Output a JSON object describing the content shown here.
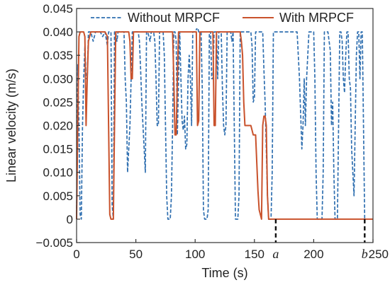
{
  "chart_data": {
    "type": "line",
    "title": "",
    "xlabel": "Time (s)",
    "ylabel": "Linear velocity (m/s)",
    "xlim": [
      0,
      250
    ],
    "ylim": [
      -0.005,
      0.045
    ],
    "xticks": [
      {
        "value": 0,
        "label": "0"
      },
      {
        "value": 50,
        "label": "50"
      },
      {
        "value": 100,
        "label": "100"
      },
      {
        "value": 150,
        "label": "150"
      },
      {
        "value": 200,
        "label": "200"
      },
      {
        "value": 250,
        "label": "250"
      }
    ],
    "yticks": [
      {
        "value": 0.045,
        "label": "0.045"
      },
      {
        "value": 0.04,
        "label": "0.040"
      },
      {
        "value": 0.035,
        "label": "0.035"
      },
      {
        "value": 0.03,
        "label": "0.030"
      },
      {
        "value": 0.025,
        "label": "0.025"
      },
      {
        "value": 0.02,
        "label": "0.020"
      },
      {
        "value": 0.015,
        "label": "0.015"
      },
      {
        "value": 0.01,
        "label": "0.010"
      },
      {
        "value": 0.005,
        "label": "0.005"
      },
      {
        "value": 0,
        "label": "0"
      },
      {
        "value": -0.005,
        "label": "−0.005"
      }
    ],
    "grid": false,
    "legend": "top",
    "markers": [
      {
        "label": "a",
        "x": 168
      },
      {
        "label": "b",
        "x": 243
      }
    ],
    "series": [
      {
        "name": "Without MRPCF",
        "color": "#2f6fb0",
        "style": "dashed",
        "points": [
          [
            0,
            0
          ],
          [
            1,
            0.033
          ],
          [
            2,
            0.02
          ],
          [
            3,
            0.001
          ],
          [
            4,
            0
          ],
          [
            5,
            0.02
          ],
          [
            6,
            0.03
          ],
          [
            7,
            0.037
          ],
          [
            8,
            0.03
          ],
          [
            9,
            0.03
          ],
          [
            10,
            0.04
          ],
          [
            12,
            0.04
          ],
          [
            14,
            0.038
          ],
          [
            16,
            0.04
          ],
          [
            18,
            0.04
          ],
          [
            20,
            0.04
          ],
          [
            22,
            0.039
          ],
          [
            24,
            0.04
          ],
          [
            26,
            0.037
          ],
          [
            27,
            0.04
          ],
          [
            28,
            0.04
          ],
          [
            29,
            0.04
          ],
          [
            30,
            0.003
          ],
          [
            31,
            0
          ],
          [
            32,
            0.04
          ],
          [
            33,
            0.04
          ],
          [
            34,
            0.038
          ],
          [
            35,
            0.04
          ],
          [
            36,
            0.04
          ],
          [
            38,
            0.04
          ],
          [
            40,
            0.04
          ],
          [
            41,
            0.03
          ],
          [
            42,
            0.025
          ],
          [
            43,
            0.01
          ],
          [
            44,
            0.015
          ],
          [
            45,
            0.02
          ],
          [
            46,
            0.03
          ],
          [
            47,
            0.04
          ],
          [
            48,
            0.04
          ],
          [
            50,
            0.04
          ],
          [
            52,
            0.04
          ],
          [
            53,
            0.038
          ],
          [
            54,
            0.032
          ],
          [
            55,
            0.025
          ],
          [
            56,
            0.02
          ],
          [
            57,
            0.015
          ],
          [
            58,
            0.01
          ],
          [
            59,
            0.04
          ],
          [
            60,
            0.04
          ],
          [
            62,
            0.038
          ],
          [
            63,
            0.04
          ],
          [
            64,
            0.04
          ],
          [
            65,
            0.04
          ],
          [
            66,
            0.038
          ],
          [
            67,
            0.03
          ],
          [
            68,
            0.02
          ],
          [
            69,
            0.02
          ],
          [
            70,
            0.04
          ],
          [
            71,
            0.04
          ],
          [
            72,
            0.04
          ],
          [
            73,
            0.04
          ],
          [
            74,
            0.035
          ],
          [
            75,
            0.02
          ],
          [
            76,
            0.005
          ],
          [
            77,
            0
          ],
          [
            78,
            0
          ],
          [
            79,
            0
          ],
          [
            80,
            0.005
          ],
          [
            81,
            0.02
          ],
          [
            82,
            0.04
          ],
          [
            83,
            0.04
          ],
          [
            84,
            0.038
          ],
          [
            85,
            0.018
          ],
          [
            86,
            0.03
          ],
          [
            87,
            0.04
          ],
          [
            88,
            0.03
          ],
          [
            89,
            0.021
          ],
          [
            90,
            0.019
          ],
          [
            91,
            0.022
          ],
          [
            92,
            0.015
          ],
          [
            93,
            0.016
          ],
          [
            94,
            0.03
          ],
          [
            95,
            0.035
          ],
          [
            96,
            0.03
          ],
          [
            97,
            0.02
          ],
          [
            98,
            0.04
          ],
          [
            100,
            0.04
          ],
          [
            102,
            0.041
          ],
          [
            103,
            0.04
          ],
          [
            104,
            0.04
          ],
          [
            105,
            0.04
          ],
          [
            106,
            0.028
          ],
          [
            107,
            0.002
          ],
          [
            108,
            0
          ],
          [
            110,
            0
          ],
          [
            111,
            0.002
          ],
          [
            112,
            0.04
          ],
          [
            113,
            0.04
          ],
          [
            114,
            0.03
          ],
          [
            115,
            0.03
          ],
          [
            116,
            0.04
          ],
          [
            117,
            0.04
          ],
          [
            118,
            0.04
          ],
          [
            119,
            0.03
          ],
          [
            120,
            0.04
          ],
          [
            121,
            0.04
          ],
          [
            122,
            0.04
          ],
          [
            123,
            0.028
          ],
          [
            124,
            0.02
          ],
          [
            125,
            0.018
          ],
          [
            126,
            0.02
          ],
          [
            127,
            0.04
          ],
          [
            128,
            0.04
          ],
          [
            129,
            0.04
          ],
          [
            130,
            0.04
          ],
          [
            131,
            0.038
          ],
          [
            132,
            0.04
          ],
          [
            133,
            0.02
          ],
          [
            134,
            0
          ],
          [
            135,
            0
          ],
          [
            136,
            0
          ],
          [
            137,
            0.005
          ],
          [
            138,
            0.04
          ],
          [
            140,
            0.04
          ],
          [
            142,
            0.04
          ],
          [
            143,
            0.04
          ],
          [
            144,
            0.04
          ],
          [
            145,
            0.04
          ],
          [
            146,
            0.04
          ],
          [
            147,
            0.04
          ],
          [
            148,
            0.037
          ],
          [
            149,
            0.025
          ],
          [
            150,
            0.026
          ],
          [
            151,
            0.04
          ],
          [
            152,
            0.04
          ],
          [
            153,
            0.04
          ],
          [
            154,
            0.04
          ],
          [
            156,
            0.04
          ],
          [
            157,
            0.04
          ],
          [
            158,
            0.032
          ],
          [
            159,
            0.025
          ],
          [
            160,
            0.015
          ],
          [
            161,
            0.005
          ],
          [
            162,
            0
          ],
          [
            163,
            0
          ],
          [
            164,
            0
          ],
          [
            165,
            0.01
          ],
          [
            166,
            0.04
          ],
          [
            167,
            0.04
          ],
          [
            168,
            0.04
          ],
          [
            170,
            0.04
          ],
          [
            172,
            0.04
          ],
          [
            174,
            0.04
          ],
          [
            176,
            0.04
          ],
          [
            178,
            0.04
          ],
          [
            180,
            0.04
          ],
          [
            182,
            0.04
          ],
          [
            184,
            0.04
          ],
          [
            186,
            0.04
          ],
          [
            188,
            0.03
          ],
          [
            190,
            0.015
          ],
          [
            191,
            0.02
          ],
          [
            192,
            0.03
          ],
          [
            193,
            0.02
          ],
          [
            194,
            0.03
          ],
          [
            195,
            0.035
          ],
          [
            196,
            0.04
          ],
          [
            197,
            0.04
          ],
          [
            198,
            0.04
          ],
          [
            199,
            0.04
          ],
          [
            200,
            0.04
          ],
          [
            201,
            0.03
          ],
          [
            202,
            0.01
          ],
          [
            203,
            0
          ],
          [
            205,
            0
          ],
          [
            207,
            0
          ],
          [
            208,
            0.01
          ],
          [
            209,
            0.04
          ],
          [
            210,
            0.04
          ],
          [
            212,
            0.04
          ],
          [
            214,
            0.036
          ],
          [
            215,
            0.02
          ],
          [
            216,
            0.025
          ],
          [
            217,
            0.01
          ],
          [
            218,
            0
          ],
          [
            219,
            0
          ],
          [
            220,
            0
          ],
          [
            221,
            0.02
          ],
          [
            222,
            0.04
          ],
          [
            223,
            0.04
          ],
          [
            224,
            0.038
          ],
          [
            225,
            0.03
          ],
          [
            226,
            0.027
          ],
          [
            227,
            0.035
          ],
          [
            228,
            0.04
          ],
          [
            229,
            0.04
          ],
          [
            230,
            0.03
          ],
          [
            231,
            0.028
          ],
          [
            232,
            0.015
          ],
          [
            233,
            0.01
          ],
          [
            234,
            0.005
          ],
          [
            235,
            0.02
          ],
          [
            236,
            0.035
          ],
          [
            237,
            0.04
          ],
          [
            238,
            0.04
          ],
          [
            239,
            0.03
          ],
          [
            240,
            0.04
          ],
          [
            241,
            0.04
          ],
          [
            242,
            0.02
          ],
          [
            243,
            0
          ]
        ]
      },
      {
        "name": "With MRPCF",
        "color": "#c9522c",
        "style": "solid",
        "points": [
          [
            0,
            0
          ],
          [
            1,
            0.02
          ],
          [
            2,
            0.039
          ],
          [
            3,
            0.04
          ],
          [
            4,
            0.04
          ],
          [
            5,
            0.04
          ],
          [
            6,
            0.04
          ],
          [
            7,
            0.039
          ],
          [
            8,
            0.02
          ],
          [
            9,
            0.03
          ],
          [
            10,
            0.038
          ],
          [
            12,
            0.04
          ],
          [
            14,
            0.04
          ],
          [
            16,
            0.04
          ],
          [
            18,
            0.04
          ],
          [
            20,
            0.04
          ],
          [
            22,
            0.04
          ],
          [
            24,
            0.04
          ],
          [
            26,
            0.039
          ],
          [
            27,
            0.02
          ],
          [
            28,
            0.001
          ],
          [
            29,
            0
          ],
          [
            30,
            0
          ],
          [
            31,
            0
          ],
          [
            32,
            0.02
          ],
          [
            33,
            0.04
          ],
          [
            35,
            0.04
          ],
          [
            38,
            0.04
          ],
          [
            40,
            0.04
          ],
          [
            42,
            0.04
          ],
          [
            44,
            0.04
          ],
          [
            45,
            0.038
          ],
          [
            46,
            0.03
          ],
          [
            47,
            0.03
          ],
          [
            48,
            0.04
          ],
          [
            50,
            0.04
          ],
          [
            55,
            0.04
          ],
          [
            60,
            0.04
          ],
          [
            65,
            0.04
          ],
          [
            70,
            0.04
          ],
          [
            74,
            0.04
          ],
          [
            75,
            0.04
          ],
          [
            76,
            0.04
          ],
          [
            78,
            0.04
          ],
          [
            80,
            0.04
          ],
          [
            81,
            0.04
          ],
          [
            82,
            0.03
          ],
          [
            83,
            0.018
          ],
          [
            84,
            0.018
          ],
          [
            85,
            0.03
          ],
          [
            86,
            0.04
          ],
          [
            90,
            0.04
          ],
          [
            95,
            0.04
          ],
          [
            100,
            0.04
          ],
          [
            101,
            0.04
          ],
          [
            102,
            0.02
          ],
          [
            103,
            0.021
          ],
          [
            104,
            0.04
          ],
          [
            106,
            0.04
          ],
          [
            110,
            0.04
          ],
          [
            114,
            0.04
          ],
          [
            115,
            0.04
          ],
          [
            116,
            0.02
          ],
          [
            117,
            0.02
          ],
          [
            118,
            0.04
          ],
          [
            120,
            0.04
          ],
          [
            125,
            0.04
          ],
          [
            130,
            0.04
          ],
          [
            135,
            0.04
          ],
          [
            138,
            0.04
          ],
          [
            139,
            0.038
          ],
          [
            140,
            0.035
          ],
          [
            141,
            0.025
          ],
          [
            142,
            0.02
          ],
          [
            143,
            0.02
          ],
          [
            146,
            0.02
          ],
          [
            147,
            0.02
          ],
          [
            148,
            0.019
          ],
          [
            149,
            0.018
          ],
          [
            150,
            0.018
          ],
          [
            151,
            0.018
          ],
          [
            152,
            0.012
          ],
          [
            153,
            0.006
          ],
          [
            154,
            0.002
          ],
          [
            155,
            0.001
          ],
          [
            156,
            0
          ],
          [
            157,
            0.02
          ],
          [
            158,
            0.022
          ],
          [
            159,
            0.022
          ],
          [
            160,
            0.02
          ],
          [
            161,
            0.005
          ],
          [
            162,
            0
          ],
          [
            163,
            0
          ],
          [
            164,
            0
          ],
          [
            250,
            0
          ]
        ]
      }
    ]
  }
}
